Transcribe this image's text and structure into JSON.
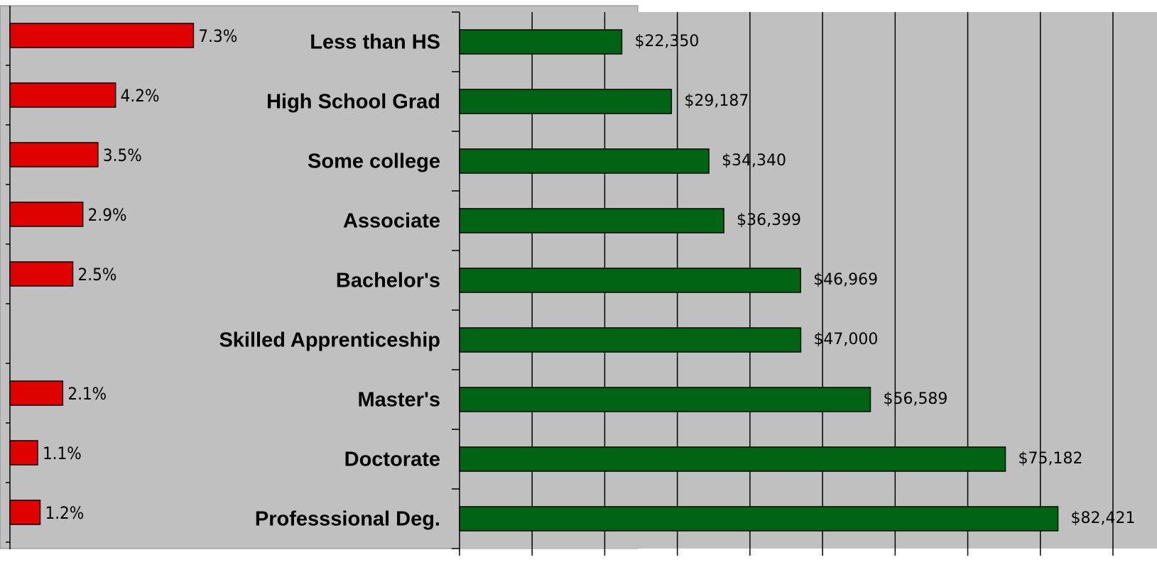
{
  "chart_data": [
    {
      "type": "bar",
      "values": [
        7.3,
        4.2,
        3.5,
        2.9,
        2.5,
        null,
        2.1,
        1.1,
        1.2
      ],
      "value_labels": [
        "7.3%",
        "4.2%",
        "3.5%",
        "2.9%",
        "2.5%",
        null,
        "2.1%",
        "1.1%",
        "1.2%"
      ],
      "color": "#e00000",
      "xlim": [
        0,
        25
      ]
    },
    {
      "type": "bar",
      "categories": [
        "Less than HS",
        "High School Grad",
        "Some college",
        "Associate",
        "Bachelor's",
        "Skilled Apprenticeship",
        "Master's",
        "Doctorate",
        "Professsional Deg."
      ],
      "values": [
        22350,
        29187,
        34340,
        36399,
        46969,
        47000,
        56589,
        75182,
        82421
      ],
      "value_labels": [
        "$22,350",
        "$29,187",
        "$34,340",
        "$36,399",
        "$46,969",
        "$47,000",
        "$56,589",
        "$75,182",
        "$82,421"
      ],
      "color": "#006414",
      "xlim": [
        0,
        90000
      ],
      "xticks": [
        0,
        10000,
        20000,
        30000,
        40000,
        50000,
        60000,
        70000,
        80000,
        90000
      ],
      "grid": true
    }
  ]
}
